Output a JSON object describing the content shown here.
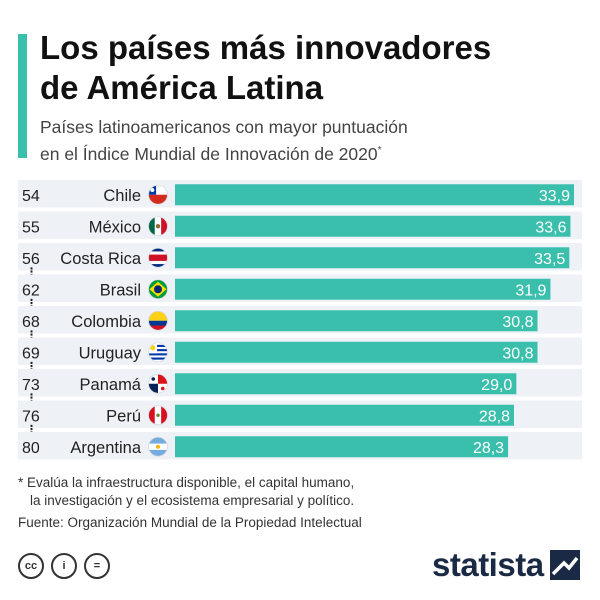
{
  "header": {
    "title_line1": "Los países más innovadores",
    "title_line2": "de América Latina",
    "subtitle_line1": "Países latinoamericanos con mayor puntuación",
    "subtitle_line2": "en el Índice Mundial de Innovación de 2020",
    "subtitle_mark": "*"
  },
  "chart_data": {
    "type": "bar",
    "orientation": "horizontal",
    "title": "Los países más innovadores de América Latina",
    "categories": [
      "Chile",
      "México",
      "Costa Rica",
      "Brasil",
      "Colombia",
      "Uruguay",
      "Panamá",
      "Perú",
      "Argentina"
    ],
    "ranks": [
      "54",
      "55",
      "56",
      "62",
      "68",
      "69",
      "73",
      "76",
      "80"
    ],
    "values": [
      33.9,
      33.6,
      33.5,
      31.9,
      30.8,
      30.8,
      29.0,
      28.8,
      28.3
    ],
    "value_labels": [
      "33,9",
      "33,6",
      "33,5",
      "31,9",
      "30,8",
      "30,8",
      "29,0",
      "28,8",
      "28,3"
    ],
    "gap_after_index": [
      2,
      3,
      4,
      5,
      6,
      7
    ],
    "flags": [
      "chile-flag-icon",
      "mexico-flag-icon",
      "costa-rica-flag-icon",
      "brazil-flag-icon",
      "colombia-flag-icon",
      "uruguay-flag-icon",
      "panama-flag-icon",
      "peru-flag-icon",
      "argentina-flag-icon"
    ],
    "xlim": [
      0,
      35
    ],
    "xlabel": "",
    "ylabel": "",
    "bar_color": "#3bbfad",
    "row_band_color": "#eef1f6"
  },
  "footer": {
    "note_line1": "* Evalúa la infraestructura disponible, el capital humano,",
    "note_line2": "la investigación y el ecosistema empresarial y político.",
    "source": "Fuente: Organización Mundial de la Propiedad Intelectual",
    "license_cc": "cc",
    "license_by": "i",
    "license_nd": "=",
    "brand": "statista"
  }
}
